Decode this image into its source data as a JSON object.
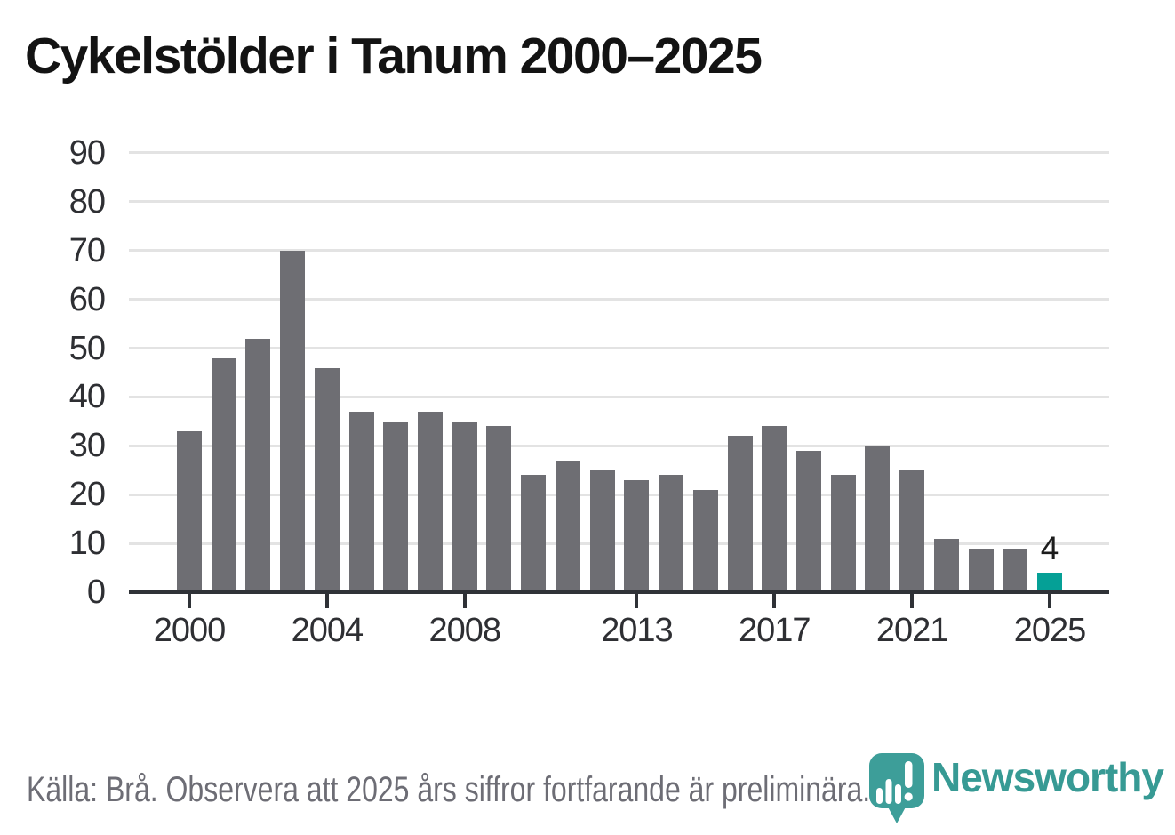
{
  "title": "Cykelstölder i Tanum 2000–2025",
  "source_note": "Källa: Brå. Observera att 2025 års siffror fortfarande är preliminära.",
  "brand": {
    "name": "Newsworthy",
    "logo_color": "#3D9E99",
    "text_color": "#379A94"
  },
  "colors": {
    "bar": "#6E6E73",
    "highlight": "#05A096",
    "grid": "#E3E3E3",
    "axis": "#2F3237",
    "tick_label": "#2E2F33",
    "title": "#131313",
    "source": "#6D6D75"
  },
  "chart_data": {
    "type": "bar",
    "title": "Cykelstölder i Tanum 2000–2025",
    "xlabel": "",
    "ylabel": "",
    "x": [
      2000,
      2001,
      2002,
      2003,
      2004,
      2005,
      2006,
      2007,
      2008,
      2009,
      2010,
      2011,
      2012,
      2013,
      2014,
      2015,
      2016,
      2017,
      2018,
      2019,
      2020,
      2021,
      2022,
      2023,
      2024,
      2025
    ],
    "values": [
      33,
      48,
      52,
      70,
      46,
      37,
      35,
      37,
      35,
      34,
      24,
      27,
      25,
      23,
      24,
      21,
      32,
      34,
      29,
      24,
      30,
      25,
      11,
      9,
      9,
      4
    ],
    "highlight_year": 2025,
    "annotation": {
      "year": 2025,
      "text": "4"
    },
    "yticks": [
      0,
      10,
      20,
      30,
      40,
      50,
      60,
      70,
      80,
      90
    ],
    "xticks": [
      2000,
      2004,
      2008,
      2013,
      2017,
      2021,
      2025
    ],
    "ylim": [
      0,
      90
    ],
    "grid": true,
    "legend": "none"
  }
}
